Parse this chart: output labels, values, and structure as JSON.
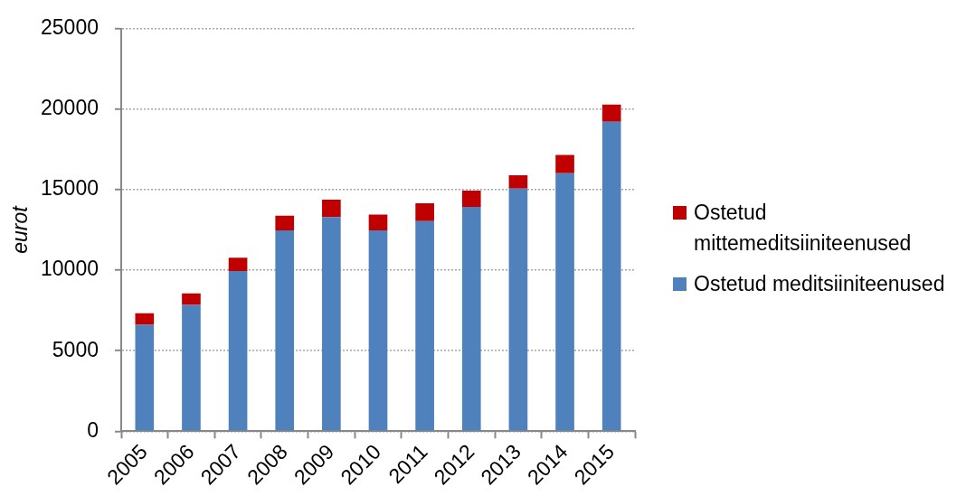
{
  "chart_data": {
    "type": "bar",
    "ylabel": "eurot",
    "stacked": true,
    "categories": [
      "2005",
      "2006",
      "2007",
      "2008",
      "2009",
      "2010",
      "2011",
      "2012",
      "2013",
      "2014",
      "2015"
    ],
    "series": [
      {
        "name": "Ostetud meditsiiniteenused",
        "color": "#4f81bd",
        "values": [
          6610,
          7840,
          9950,
          12470,
          13300,
          12470,
          13050,
          13940,
          15070,
          16030,
          19220
        ]
      },
      {
        "name": "Ostetud mittemeditsiiniteenused",
        "color": "#c00000",
        "values": [
          710,
          720,
          830,
          910,
          1080,
          980,
          1110,
          1000,
          830,
          1130,
          1070
        ]
      }
    ],
    "ylim": [
      0,
      25000
    ],
    "yticks": [
      0,
      5000,
      10000,
      15000,
      20000,
      25000
    ],
    "grid": "y",
    "legend": "right"
  }
}
